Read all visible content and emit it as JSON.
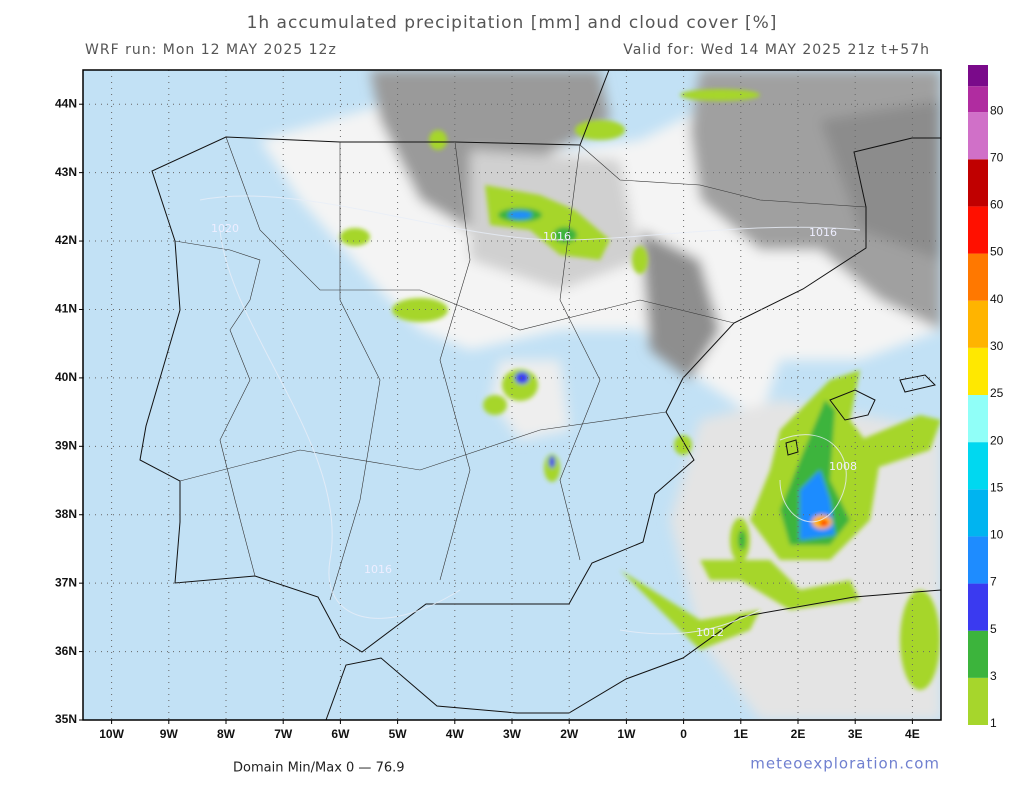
{
  "header": {
    "title": "1h accumulated precipitation [mm] and cloud cover [%]",
    "run": "WRF run: Mon 12 MAY 2025 12z",
    "valid": "Valid for: Wed 14 MAY 2025 21z  t+57h"
  },
  "map": {
    "xlim": [
      -10.5,
      4.5
    ],
    "ylim": [
      35,
      44.5
    ],
    "lat_ticks": [
      {
        "value": 35,
        "label": "35N"
      },
      {
        "value": 36,
        "label": "36N"
      },
      {
        "value": 37,
        "label": "37N"
      },
      {
        "value": 38,
        "label": "38N"
      },
      {
        "value": 39,
        "label": "39N"
      },
      {
        "value": 40,
        "label": "40N"
      },
      {
        "value": 41,
        "label": "41N"
      },
      {
        "value": 42,
        "label": "42N"
      },
      {
        "value": 43,
        "label": "43N"
      },
      {
        "value": 44,
        "label": "44N"
      }
    ],
    "lon_ticks": [
      {
        "value": -10,
        "label": "10W"
      },
      {
        "value": -9,
        "label": "9W"
      },
      {
        "value": -8,
        "label": "8W"
      },
      {
        "value": -7,
        "label": "7W"
      },
      {
        "value": -6,
        "label": "6W"
      },
      {
        "value": -5,
        "label": "5W"
      },
      {
        "value": -4,
        "label": "4W"
      },
      {
        "value": -3,
        "label": "3W"
      },
      {
        "value": -2,
        "label": "2W"
      },
      {
        "value": -1,
        "label": "1W"
      },
      {
        "value": 0,
        "label": "0"
      },
      {
        "value": 1,
        "label": "1E"
      },
      {
        "value": 2,
        "label": "2E"
      },
      {
        "value": 3,
        "label": "3E"
      },
      {
        "value": 4,
        "label": "4E"
      }
    ],
    "grid": true,
    "isobar_labels": [
      "1016",
      "1008",
      "1012",
      "1016",
      "1020",
      "1016"
    ]
  },
  "colorbar": {
    "levels": [
      1,
      3,
      5,
      7,
      10,
      15,
      20,
      25,
      30,
      40,
      50,
      60,
      70,
      80
    ],
    "colors": [
      "#a6d62c",
      "#3cb43c",
      "#3a3af0",
      "#1e8cff",
      "#00b4f0",
      "#00d8f0",
      "#90fff8",
      "#ffe800",
      "#ffb400",
      "#ff7800",
      "#ff1000",
      "#c00000",
      "#d070c8",
      "#b02ca0",
      "#7a0a8a"
    ]
  },
  "footer": {
    "minmax": "Domain Min/Max 0 — 76.9",
    "credit": "meteoexploration.com"
  }
}
